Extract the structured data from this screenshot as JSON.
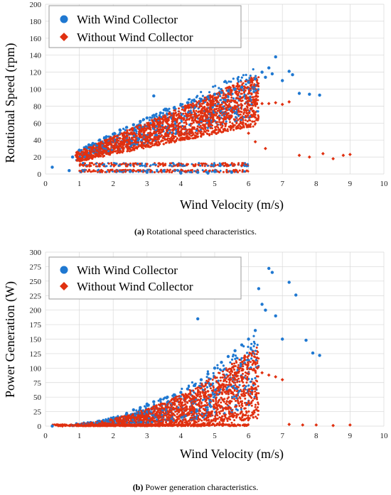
{
  "colors": {
    "with": "#1f78d1",
    "without": "#e03010",
    "without_center": "#7a5a10",
    "grid": "#d8d8d8"
  },
  "chart_data": [
    {
      "type": "scatter",
      "caption_label": "(a)",
      "caption_text": " Rotational speed characteristics.",
      "xlabel": "Wind Velocity (m/s)",
      "ylabel": "Rotational Speed (rpm)",
      "xlim": [
        0,
        10
      ],
      "ylim": [
        0,
        200
      ],
      "xticks": [
        "0",
        "1",
        "2",
        "3",
        "4",
        "5",
        "6",
        "7",
        "8",
        "9",
        "10"
      ],
      "yticks": [
        "0",
        "20",
        "40",
        "60",
        "80",
        "100",
        "120",
        "140",
        "160",
        "180",
        "200"
      ],
      "legend": [
        "With Wind Collector",
        "Without Wind Collector"
      ],
      "legend_position": "top-left",
      "series": [
        {
          "name": "With Wind Collector",
          "x": [
            0.2,
            0.7,
            0.8,
            1.0,
            1.2,
            1.4,
            1.6,
            1.8,
            2.0,
            2.2,
            2.4,
            2.6,
            2.8,
            3.0,
            3.2,
            3.4,
            3.6,
            3.8,
            4.0,
            4.2,
            4.4,
            4.6,
            4.8,
            5.0,
            5.2,
            5.4,
            5.6,
            5.8,
            6.0,
            6.2,
            6.4,
            6.5,
            6.6,
            6.7,
            6.8,
            7.0,
            7.2,
            7.3,
            7.5,
            7.8,
            8.1,
            2.5,
            3.0,
            3.5,
            4.0,
            4.5,
            5.0,
            5.5,
            3.2,
            4.8
          ],
          "y": [
            8,
            4,
            20,
            28,
            32,
            36,
            40,
            44,
            47,
            52,
            55,
            58,
            62,
            66,
            69,
            72,
            75,
            78,
            81,
            84,
            86,
            88,
            91,
            94,
            96,
            98,
            100,
            102,
            108,
            112,
            120,
            114,
            125,
            118,
            138,
            110,
            121,
            117,
            95,
            94,
            93,
            3,
            2,
            4,
            1,
            2,
            3,
            2,
            92,
            1
          ]
        },
        {
          "name": "Without Wind Collector",
          "x": [
            0.9,
            1.0,
            1.2,
            1.4,
            1.6,
            1.8,
            2.0,
            2.2,
            2.4,
            2.6,
            2.8,
            3.0,
            3.2,
            3.4,
            3.6,
            3.8,
            4.0,
            4.2,
            4.4,
            4.6,
            4.8,
            5.0,
            5.2,
            5.4,
            5.6,
            5.8,
            6.0,
            6.2,
            6.4,
            6.6,
            6.8,
            7.0,
            7.2,
            7.5,
            7.8,
            8.2,
            8.5,
            8.8,
            9.0,
            6.0,
            6.2,
            5.8,
            6.5
          ],
          "y": [
            22,
            24,
            27,
            30,
            33,
            36,
            39,
            42,
            45,
            48,
            51,
            54,
            57,
            60,
            62,
            64,
            66,
            68,
            70,
            72,
            74,
            76,
            78,
            79,
            80,
            81,
            82,
            82,
            83,
            83,
            84,
            82,
            85,
            22,
            20,
            24,
            18,
            22,
            23,
            48,
            38,
            10,
            30
          ]
        }
      ]
    },
    {
      "type": "scatter",
      "caption_label": "(b)",
      "caption_text": " Power generation characteristics.",
      "xlabel": "Wind Velocity (m/s)",
      "ylabel": "Power Generation (W)",
      "xlim": [
        0,
        10
      ],
      "ylim": [
        0,
        300
      ],
      "xticks": [
        "0",
        "1",
        "2",
        "3",
        "4",
        "5",
        "6",
        "7",
        "8",
        "9",
        "10"
      ],
      "yticks": [
        "0",
        "25",
        "50",
        "75",
        "100",
        "125",
        "150",
        "175",
        "200",
        "225",
        "250",
        "275",
        "300"
      ],
      "legend": [
        "With Wind Collector",
        "Without Wind Collector"
      ],
      "legend_position": "top-left",
      "series": [
        {
          "name": "With Wind Collector",
          "x": [
            0.2,
            0.8,
            1.2,
            1.6,
            2.0,
            2.4,
            2.6,
            2.8,
            3.0,
            3.2,
            3.4,
            3.6,
            3.8,
            4.0,
            4.2,
            4.4,
            4.5,
            4.6,
            4.8,
            5.0,
            5.2,
            5.4,
            5.6,
            5.8,
            6.0,
            6.2,
            6.3,
            6.4,
            6.5,
            6.6,
            6.7,
            6.8,
            7.0,
            7.2,
            7.4,
            7.7,
            7.9,
            8.1
          ],
          "y": [
            0,
            1,
            3,
            8,
            14,
            22,
            28,
            32,
            38,
            42,
            46,
            50,
            54,
            58,
            64,
            70,
            185,
            80,
            90,
            100,
            110,
            120,
            130,
            140,
            150,
            165,
            237,
            210,
            200,
            272,
            265,
            190,
            150,
            248,
            226,
            148,
            126,
            122
          ]
        },
        {
          "name": "Without Wind Collector",
          "x": [
            0.5,
            0.8,
            1.2,
            1.6,
            2.0,
            2.4,
            2.8,
            3.2,
            3.6,
            4.0,
            4.4,
            4.8,
            5.2,
            5.6,
            5.8,
            6.0,
            6.2,
            6.4,
            6.6,
            6.8,
            7.0,
            7.2,
            7.6,
            8.0,
            8.5,
            9.0
          ],
          "y": [
            0,
            1,
            2,
            4,
            7,
            12,
            18,
            25,
            32,
            40,
            50,
            60,
            70,
            80,
            85,
            90,
            95,
            92,
            88,
            85,
            80,
            3,
            2,
            2,
            1,
            2
          ]
        }
      ]
    }
  ]
}
